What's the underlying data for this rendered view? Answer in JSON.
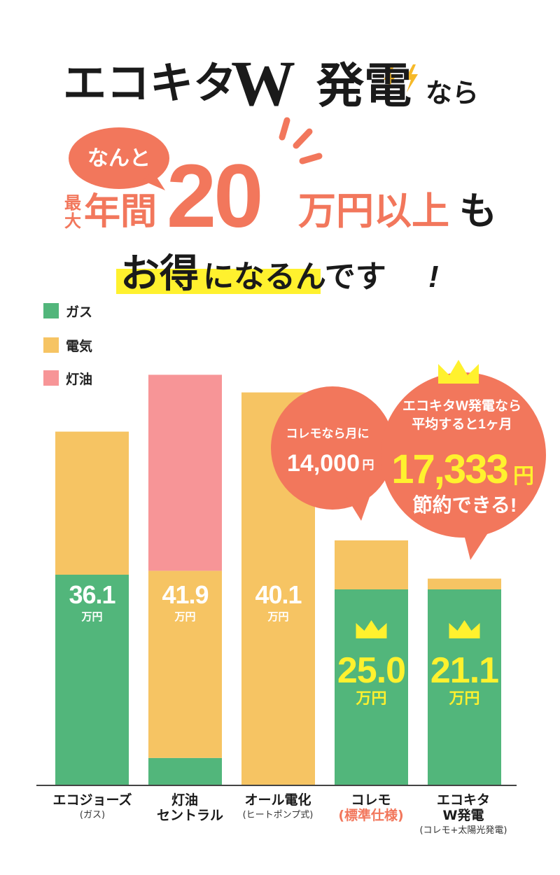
{
  "headline": {
    "title_main": "エコキタ",
    "title_w": "W",
    "title_gen": "発電",
    "title_nara": "なら",
    "bubble": "なんと",
    "sai": "最",
    "dai": "大",
    "nenkan": "年間",
    "amount": "20",
    "amount_unit": "万円以上",
    "mo": "も",
    "otoku": "お得",
    "ninaru": "になるんです",
    "excl": "!"
  },
  "colors": {
    "gas": "#52b67b",
    "electric": "#f6c463",
    "kerosene": "#f79597",
    "accent": "#f2775c",
    "highlight": "#fff12e"
  },
  "legend": [
    {
      "label": "ガス",
      "color": "#52b67b"
    },
    {
      "label": "電気",
      "color": "#f6c463"
    },
    {
      "label": "灯油",
      "color": "#f79597"
    }
  ],
  "callout_small": {
    "line1": "コレモなら月に",
    "amount": "14,000",
    "unit": "円"
  },
  "callout_large": {
    "line1": "エコキタW発電なら",
    "line2": "平均すると1ヶ月",
    "amount": "17,333",
    "unit": "円",
    "line3": "節約できる!"
  },
  "chart_data": {
    "type": "bar",
    "stacked": true,
    "categories": [
      "エコジョーズ",
      "灯油 セントラル",
      "オール電化",
      "コレモ",
      "エコキタ W発電"
    ],
    "category_subs": [
      "(ガス)",
      "",
      "(ヒートポンプ式)",
      "(標準仕様)",
      "(コレモ+太陽光発電)"
    ],
    "totals": [
      "36.1",
      "41.9",
      "40.1",
      "25.0",
      "21.1"
    ],
    "total_unit": "万円",
    "series": [
      {
        "name": "ガス",
        "values": [
          21.5,
          2.8,
          0,
          20.0,
          20.0
        ]
      },
      {
        "name": "電気",
        "values": [
          14.6,
          19.1,
          40.1,
          5.0,
          1.1
        ]
      },
      {
        "name": "灯油",
        "values": [
          0,
          20.0,
          0,
          0,
          0
        ]
      }
    ],
    "ylim": [
      0,
      45
    ],
    "grid": false,
    "legend_position": "top-left"
  }
}
